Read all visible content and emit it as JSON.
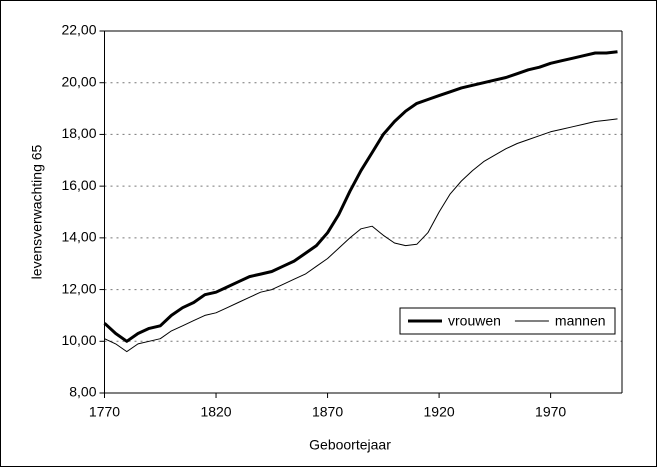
{
  "chart_data": {
    "type": "line",
    "x_label": "Geboortejaar",
    "y_label": "levensverwachting 65",
    "x": [
      1770,
      1775,
      1780,
      1785,
      1790,
      1795,
      1800,
      1805,
      1810,
      1815,
      1820,
      1825,
      1830,
      1835,
      1840,
      1845,
      1850,
      1855,
      1860,
      1865,
      1870,
      1875,
      1880,
      1885,
      1890,
      1895,
      1900,
      1905,
      1910,
      1915,
      1920,
      1925,
      1930,
      1935,
      1940,
      1945,
      1950,
      1955,
      1960,
      1965,
      1970,
      1975,
      1980,
      1985,
      1990,
      1995,
      2000
    ],
    "series": [
      {
        "name": "vrouwen",
        "color": "#000000",
        "line_width": 3,
        "values": [
          10.7,
          10.3,
          10.0,
          10.3,
          10.5,
          10.6,
          11.0,
          11.3,
          11.5,
          11.8,
          11.9,
          12.1,
          12.3,
          12.5,
          12.6,
          12.7,
          12.9,
          13.1,
          13.4,
          13.7,
          14.2,
          14.9,
          15.8,
          16.6,
          17.3,
          18.0,
          18.5,
          18.9,
          19.2,
          19.35,
          19.5,
          19.65,
          19.8,
          19.9,
          20.0,
          20.1,
          20.2,
          20.35,
          20.5,
          20.6,
          20.75,
          20.85,
          20.95,
          21.05,
          21.15,
          21.15,
          21.2
        ]
      },
      {
        "name": "mannen",
        "color": "#000000",
        "line_width": 1,
        "values": [
          10.1,
          9.9,
          9.6,
          9.9,
          10.0,
          10.1,
          10.4,
          10.6,
          10.8,
          11.0,
          11.1,
          11.3,
          11.5,
          11.7,
          11.9,
          12.0,
          12.2,
          12.4,
          12.6,
          12.9,
          13.2,
          13.6,
          14.0,
          14.35,
          14.45,
          14.1,
          13.8,
          13.7,
          13.75,
          14.2,
          15.0,
          15.7,
          16.2,
          16.6,
          16.95,
          17.2,
          17.45,
          17.65,
          17.8,
          17.95,
          18.1,
          18.2,
          18.3,
          18.4,
          18.5,
          18.55,
          18.6
        ]
      }
    ],
    "xlim": [
      1770,
      2002
    ],
    "xticks": [
      1770,
      1820,
      1870,
      1920,
      1970
    ],
    "ylim": [
      8,
      22
    ],
    "yticks": [
      {
        "value": 8,
        "label": "8,00"
      },
      {
        "value": 10,
        "label": "10,00"
      },
      {
        "value": 12,
        "label": "12,00"
      },
      {
        "value": 14,
        "label": "14,00"
      },
      {
        "value": 16,
        "label": "16,00"
      },
      {
        "value": 18,
        "label": "18,00"
      },
      {
        "value": 20,
        "label": "20,00"
      },
      {
        "value": 22,
        "label": "22,00"
      }
    ],
    "grid": true,
    "legend": "lower right"
  }
}
